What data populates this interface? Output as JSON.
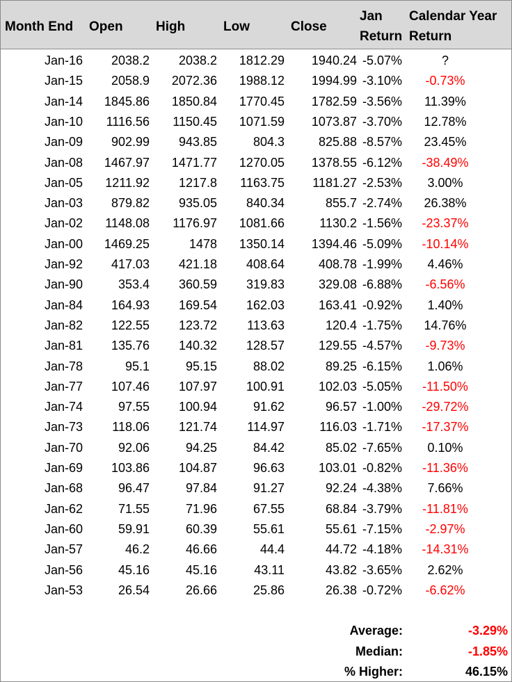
{
  "headers": {
    "month_end": "Month End",
    "open": "Open",
    "high": "High",
    "low": "Low",
    "close": "Close",
    "jan_return_line1": "Jan",
    "jan_return_line2": "Return",
    "cal_return_line1": "Calendar Year",
    "cal_return_line2": "Return"
  },
  "rows": [
    {
      "month": "Jan-16",
      "open": "2038.2",
      "high": "2038.2",
      "low": "1812.29",
      "close": "1940.24",
      "jan": "-5.07%",
      "cal": "?",
      "cal_neg": false
    },
    {
      "month": "Jan-15",
      "open": "2058.9",
      "high": "2072.36",
      "low": "1988.12",
      "close": "1994.99",
      "jan": "-3.10%",
      "cal": "-0.73%",
      "cal_neg": true
    },
    {
      "month": "Jan-14",
      "open": "1845.86",
      "high": "1850.84",
      "low": "1770.45",
      "close": "1782.59",
      "jan": "-3.56%",
      "cal": "11.39%",
      "cal_neg": false
    },
    {
      "month": "Jan-10",
      "open": "1116.56",
      "high": "1150.45",
      "low": "1071.59",
      "close": "1073.87",
      "jan": "-3.70%",
      "cal": "12.78%",
      "cal_neg": false
    },
    {
      "month": "Jan-09",
      "open": "902.99",
      "high": "943.85",
      "low": "804.3",
      "close": "825.88",
      "jan": "-8.57%",
      "cal": "23.45%",
      "cal_neg": false
    },
    {
      "month": "Jan-08",
      "open": "1467.97",
      "high": "1471.77",
      "low": "1270.05",
      "close": "1378.55",
      "jan": "-6.12%",
      "cal": "-38.49%",
      "cal_neg": true
    },
    {
      "month": "Jan-05",
      "open": "1211.92",
      "high": "1217.8",
      "low": "1163.75",
      "close": "1181.27",
      "jan": "-2.53%",
      "cal": "3.00%",
      "cal_neg": false
    },
    {
      "month": "Jan-03",
      "open": "879.82",
      "high": "935.05",
      "low": "840.34",
      "close": "855.7",
      "jan": "-2.74%",
      "cal": "26.38%",
      "cal_neg": false
    },
    {
      "month": "Jan-02",
      "open": "1148.08",
      "high": "1176.97",
      "low": "1081.66",
      "close": "1130.2",
      "jan": "-1.56%",
      "cal": "-23.37%",
      "cal_neg": true
    },
    {
      "month": "Jan-00",
      "open": "1469.25",
      "high": "1478",
      "low": "1350.14",
      "close": "1394.46",
      "jan": "-5.09%",
      "cal": "-10.14%",
      "cal_neg": true
    },
    {
      "month": "Jan-92",
      "open": "417.03",
      "high": "421.18",
      "low": "408.64",
      "close": "408.78",
      "jan": "-1.99%",
      "cal": "4.46%",
      "cal_neg": false
    },
    {
      "month": "Jan-90",
      "open": "353.4",
      "high": "360.59",
      "low": "319.83",
      "close": "329.08",
      "jan": "-6.88%",
      "cal": "-6.56%",
      "cal_neg": true
    },
    {
      "month": "Jan-84",
      "open": "164.93",
      "high": "169.54",
      "low": "162.03",
      "close": "163.41",
      "jan": "-0.92%",
      "cal": "1.40%",
      "cal_neg": false
    },
    {
      "month": "Jan-82",
      "open": "122.55",
      "high": "123.72",
      "low": "113.63",
      "close": "120.4",
      "jan": "-1.75%",
      "cal": "14.76%",
      "cal_neg": false
    },
    {
      "month": "Jan-81",
      "open": "135.76",
      "high": "140.32",
      "low": "128.57",
      "close": "129.55",
      "jan": "-4.57%",
      "cal": "-9.73%",
      "cal_neg": true
    },
    {
      "month": "Jan-78",
      "open": "95.1",
      "high": "95.15",
      "low": "88.02",
      "close": "89.25",
      "jan": "-6.15%",
      "cal": "1.06%",
      "cal_neg": false
    },
    {
      "month": "Jan-77",
      "open": "107.46",
      "high": "107.97",
      "low": "100.91",
      "close": "102.03",
      "jan": "-5.05%",
      "cal": "-11.50%",
      "cal_neg": true
    },
    {
      "month": "Jan-74",
      "open": "97.55",
      "high": "100.94",
      "low": "91.62",
      "close": "96.57",
      "jan": "-1.00%",
      "cal": "-29.72%",
      "cal_neg": true
    },
    {
      "month": "Jan-73",
      "open": "118.06",
      "high": "121.74",
      "low": "114.97",
      "close": "116.03",
      "jan": "-1.71%",
      "cal": "-17.37%",
      "cal_neg": true
    },
    {
      "month": "Jan-70",
      "open": "92.06",
      "high": "94.25",
      "low": "84.42",
      "close": "85.02",
      "jan": "-7.65%",
      "cal": "0.10%",
      "cal_neg": false
    },
    {
      "month": "Jan-69",
      "open": "103.86",
      "high": "104.87",
      "low": "96.63",
      "close": "103.01",
      "jan": "-0.82%",
      "cal": "-11.36%",
      "cal_neg": true
    },
    {
      "month": "Jan-68",
      "open": "96.47",
      "high": "97.84",
      "low": "91.27",
      "close": "92.24",
      "jan": "-4.38%",
      "cal": "7.66%",
      "cal_neg": false
    },
    {
      "month": "Jan-62",
      "open": "71.55",
      "high": "71.96",
      "low": "67.55",
      "close": "68.84",
      "jan": "-3.79%",
      "cal": "-11.81%",
      "cal_neg": true
    },
    {
      "month": "Jan-60",
      "open": "59.91",
      "high": "60.39",
      "low": "55.61",
      "close": "55.61",
      "jan": "-7.15%",
      "cal": "-2.97%",
      "cal_neg": true
    },
    {
      "month": "Jan-57",
      "open": "46.2",
      "high": "46.66",
      "low": "44.4",
      "close": "44.72",
      "jan": "-4.18%",
      "cal": "-14.31%",
      "cal_neg": true
    },
    {
      "month": "Jan-56",
      "open": "45.16",
      "high": "45.16",
      "low": "43.11",
      "close": "43.82",
      "jan": "-3.65%",
      "cal": "2.62%",
      "cal_neg": false
    },
    {
      "month": "Jan-53",
      "open": "26.54",
      "high": "26.66",
      "low": "25.86",
      "close": "26.38",
      "jan": "-0.72%",
      "cal": "-6.62%",
      "cal_neg": true
    }
  ],
  "summary": [
    {
      "label": "Average:",
      "value": "-3.29%",
      "neg": true
    },
    {
      "label": "Median:",
      "value": "-1.85%",
      "neg": true
    },
    {
      "label": "% Higher:",
      "value": "46.15%",
      "neg": false
    }
  ],
  "colors": {
    "header_bg": "#d9d9d9",
    "negative": "#ff0000",
    "text": "#000000"
  }
}
